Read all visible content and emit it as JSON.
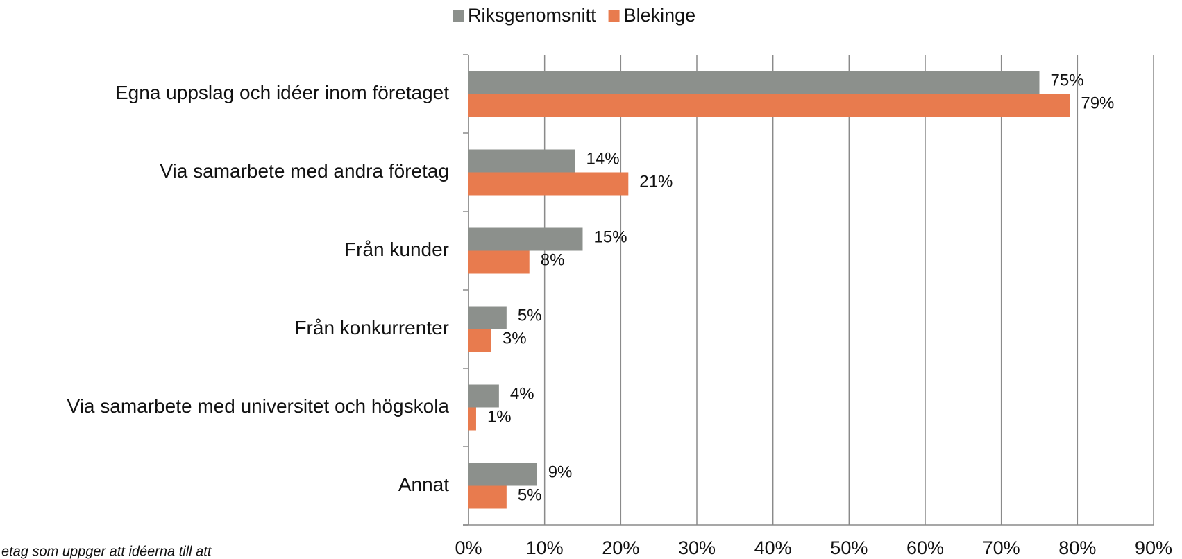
{
  "chart_data": {
    "type": "barh",
    "categories": [
      "Egna uppslag och idéer inom företaget",
      "Via samarbete med andra företag",
      "Från kunder",
      "Från konkurrenter",
      "Via samarbete med universitet och högskola",
      "Annat"
    ],
    "series": [
      {
        "name": "Riksgenomsnitt",
        "color": "#8c908c",
        "values": [
          75,
          14,
          15,
          5,
          4,
          9
        ],
        "value_labels": [
          "75%",
          "14%",
          "15%",
          "5%",
          "4%",
          "9%"
        ]
      },
      {
        "name": "Blekinge",
        "color": "#e87b4e",
        "values": [
          79,
          21,
          8,
          3,
          1,
          5
        ],
        "value_labels": [
          "79%",
          "21%",
          "8%",
          "3%",
          "1%",
          "5%"
        ]
      }
    ],
    "xlim": [
      0,
      90
    ],
    "xticks": [
      {
        "value": 0,
        "label": "0%"
      },
      {
        "value": 10,
        "label": "10%"
      },
      {
        "value": 20,
        "label": "20%"
      },
      {
        "value": 30,
        "label": "30%"
      },
      {
        "value": 40,
        "label": "40%"
      },
      {
        "value": 50,
        "label": "50%"
      },
      {
        "value": 60,
        "label": "60%"
      },
      {
        "value": 70,
        "label": "70%"
      },
      {
        "value": 80,
        "label": "80%"
      },
      {
        "value": 90,
        "label": "90%"
      }
    ],
    "grid": true,
    "legend": "top",
    "footnote": "etag som uppger att idéerna till att"
  }
}
